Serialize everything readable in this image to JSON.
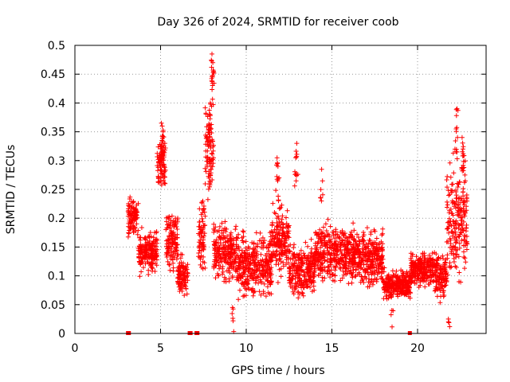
{
  "chart_data": {
    "type": "scatter",
    "title": "Day 326 of 2024, SRMTID for receiver coob",
    "xlabel": "GPS time / hours",
    "ylabel": "SRMTID / TECUs",
    "xlim": [
      0,
      24
    ],
    "ylim": [
      0,
      0.5
    ],
    "x_ticks": [
      0,
      5,
      10,
      15,
      20
    ],
    "y_ticks": [
      0,
      0.05,
      0.1,
      0.15,
      0.2,
      0.25,
      0.3,
      0.35,
      0.4,
      0.45,
      0.5
    ],
    "grid": true,
    "marker": "plus",
    "series_color": "#ff0000",
    "segments": [
      {
        "x_start": 3.1,
        "x_end": 3.7,
        "y_center": 0.205,
        "y_spread": 0.035
      },
      {
        "x_start": 3.7,
        "x_end": 4.8,
        "y_center": 0.14,
        "y_spread": 0.04
      },
      {
        "x_start": 4.8,
        "x_end": 5.3,
        "y_center": 0.3,
        "y_spread": 0.05
      },
      {
        "x_start": 5.3,
        "x_end": 6.0,
        "y_center": 0.16,
        "y_spread": 0.05
      },
      {
        "x_start": 6.0,
        "x_end": 6.6,
        "y_center": 0.1,
        "y_spread": 0.035
      },
      {
        "x_start": 7.2,
        "x_end": 7.6,
        "y_center": 0.17,
        "y_spread": 0.06
      },
      {
        "x_start": 7.6,
        "x_end": 8.1,
        "y_center": 0.32,
        "y_spread": 0.08
      },
      {
        "x_start": 8.1,
        "x_end": 9.5,
        "y_center": 0.14,
        "y_spread": 0.05
      },
      {
        "x_start": 9.5,
        "x_end": 11.5,
        "y_center": 0.12,
        "y_spread": 0.055
      },
      {
        "x_start": 11.5,
        "x_end": 12.5,
        "y_center": 0.16,
        "y_spread": 0.06
      },
      {
        "x_start": 12.5,
        "x_end": 14.0,
        "y_center": 0.11,
        "y_spread": 0.045
      },
      {
        "x_start": 14.0,
        "x_end": 16.5,
        "y_center": 0.14,
        "y_spread": 0.05
      },
      {
        "x_start": 16.5,
        "x_end": 18.0,
        "y_center": 0.13,
        "y_spread": 0.05
      },
      {
        "x_start": 18.0,
        "x_end": 19.6,
        "y_center": 0.085,
        "y_spread": 0.025
      },
      {
        "x_start": 19.6,
        "x_end": 21.0,
        "y_center": 0.11,
        "y_spread": 0.03
      },
      {
        "x_start": 21.0,
        "x_end": 21.7,
        "y_center": 0.1,
        "y_spread": 0.04
      },
      {
        "x_start": 21.7,
        "x_end": 22.9,
        "y_center": 0.2,
        "y_spread": 0.1
      }
    ],
    "peaks": [
      {
        "x": 5.05,
        "y": 0.365
      },
      {
        "x": 5.1,
        "y": 0.36
      },
      {
        "x": 5.15,
        "y": 0.35
      },
      {
        "x": 8.0,
        "y": 0.485
      },
      {
        "x": 8.05,
        "y": 0.47
      },
      {
        "x": 8.1,
        "y": 0.455
      },
      {
        "x": 7.9,
        "y": 0.4
      },
      {
        "x": 7.85,
        "y": 0.38
      },
      {
        "x": 11.8,
        "y": 0.305
      },
      {
        "x": 11.85,
        "y": 0.29
      },
      {
        "x": 12.95,
        "y": 0.33
      },
      {
        "x": 12.9,
        "y": 0.305
      },
      {
        "x": 14.4,
        "y": 0.285
      },
      {
        "x": 22.3,
        "y": 0.39
      },
      {
        "x": 22.25,
        "y": 0.355
      },
      {
        "x": 22.6,
        "y": 0.34
      },
      {
        "x": 22.65,
        "y": 0.32
      },
      {
        "x": 9.2,
        "y": 0.045
      },
      {
        "x": 18.5,
        "y": 0.04
      },
      {
        "x": 21.8,
        "y": 0.025
      }
    ],
    "zero_markers": [
      3.1,
      3.15,
      6.7,
      6.75,
      7.1,
      7.15,
      19.55
    ]
  }
}
